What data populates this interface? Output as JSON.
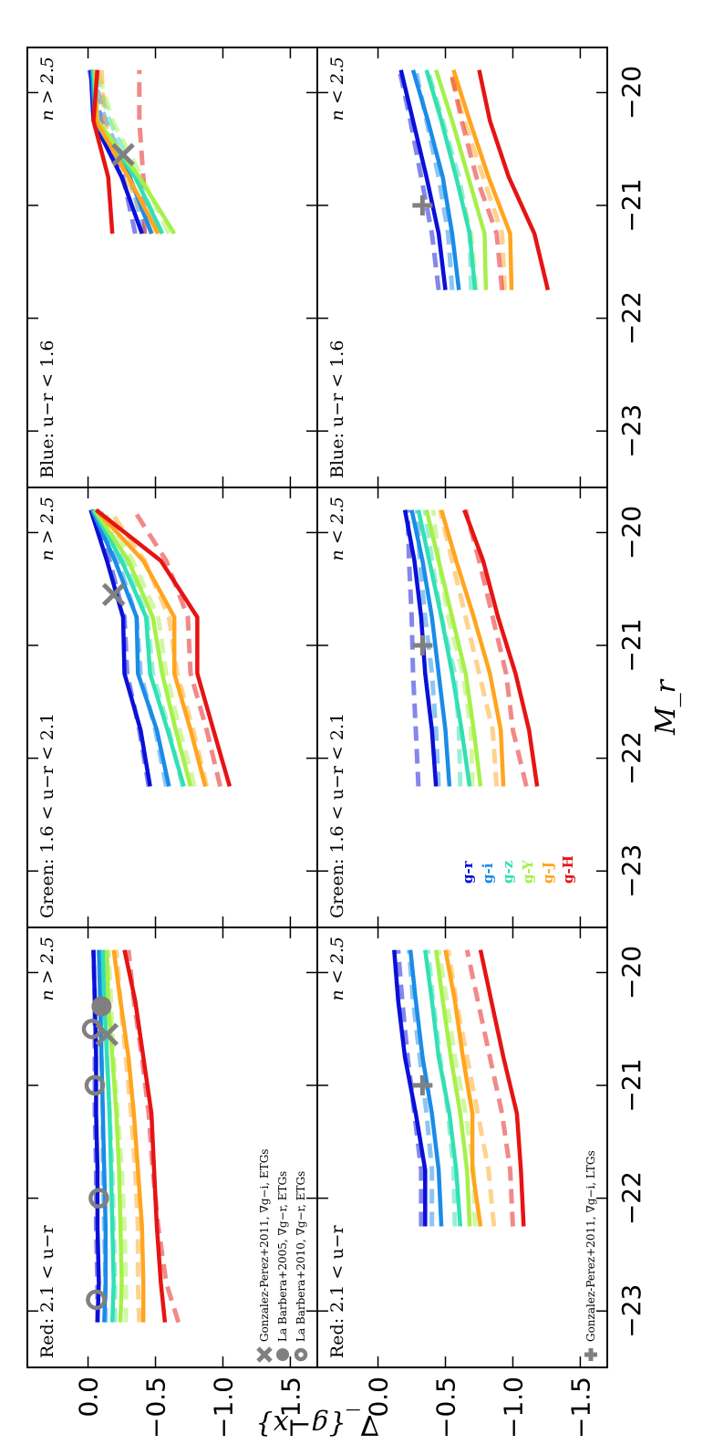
{
  "chart_data": {
    "type": "line",
    "xlabel": "M_r",
    "ylabel": "∇_{g−x}",
    "xlim": [
      -23.5,
      -19.6
    ],
    "ylim": [
      -1.7,
      0.45
    ],
    "xticks": [
      -23,
      -22,
      -21,
      -20
    ],
    "xtick_labels": [
      "−23",
      "−22",
      "−21",
      "−20"
    ],
    "yticks": [
      0.0,
      -0.5,
      -1.0,
      -1.5
    ],
    "ytick_labels": [
      "0.0",
      "−0.5",
      "−1.0",
      "−1.5"
    ],
    "color_names": [
      "g-r",
      "g-i",
      "g-z",
      "g-Y",
      "g-J",
      "g-H"
    ],
    "colors": [
      "#0a10d8",
      "#1a8ce8",
      "#32e0b4",
      "#a6f04a",
      "#ffa51e",
      "#e61414"
    ],
    "panels": [
      {
        "id": "red-high-n",
        "col": 0,
        "row": 0,
        "label_left": "Red: 2.1 < u−r",
        "label_right": "n > 2.5",
        "x": [
          -23.1,
          -22.75,
          -22.25,
          -21.75,
          -21.25,
          -20.75,
          -20.25,
          -19.8
        ],
        "series_solid": [
          [
            -0.07,
            -0.08,
            -0.07,
            -0.07,
            -0.06,
            -0.06,
            -0.05,
            -0.04
          ],
          [
            -0.12,
            -0.13,
            -0.13,
            -0.12,
            -0.11,
            -0.1,
            -0.09,
            -0.08
          ],
          [
            -0.18,
            -0.19,
            -0.18,
            -0.17,
            -0.16,
            -0.14,
            -0.12,
            -0.11
          ],
          [
            -0.24,
            -0.25,
            -0.24,
            -0.23,
            -0.21,
            -0.18,
            -0.15,
            -0.14
          ],
          [
            -0.41,
            -0.41,
            -0.4,
            -0.37,
            -0.34,
            -0.3,
            -0.24,
            -0.19
          ],
          [
            -0.57,
            -0.54,
            -0.51,
            -0.49,
            -0.47,
            -0.41,
            -0.35,
            -0.27
          ]
        ],
        "series_dashed": [
          [
            -0.07,
            -0.07,
            -0.06,
            -0.06,
            -0.05,
            -0.05,
            -0.05,
            -0.04
          ],
          [
            -0.13,
            -0.13,
            -0.12,
            -0.11,
            -0.11,
            -0.1,
            -0.09,
            -0.09
          ],
          [
            -0.2,
            -0.2,
            -0.19,
            -0.18,
            -0.16,
            -0.14,
            -0.13,
            -0.12
          ],
          [
            -0.28,
            -0.28,
            -0.27,
            -0.25,
            -0.22,
            -0.19,
            -0.17,
            -0.15
          ],
          [
            -0.38,
            -0.37,
            -0.37,
            -0.35,
            -0.32,
            -0.28,
            -0.24,
            -0.21
          ],
          [
            -0.67,
            -0.58,
            -0.52,
            -0.48,
            -0.45,
            -0.4,
            -0.34,
            -0.3
          ]
        ],
        "markers": [
          {
            "kind": "cross",
            "x": -20.55,
            "y": -0.14
          },
          {
            "kind": "disk",
            "x": -20.3,
            "y": -0.1
          },
          {
            "kind": "ring",
            "x": -22.9,
            "y": -0.06
          },
          {
            "kind": "ring",
            "x": -22.0,
            "y": -0.08
          },
          {
            "kind": "ring",
            "x": -21.0,
            "y": -0.05
          },
          {
            "kind": "ring",
            "x": -20.5,
            "y": -0.03
          }
        ],
        "legend": [
          {
            "kind": "cross",
            "text": "Gonzalez-Perez+2011, ∇g−i, ETGs"
          },
          {
            "kind": "disk",
            "text": "La Barbera+2005, ∇g−r, ETGs"
          },
          {
            "kind": "ring",
            "text": "La Barbera+2010, ∇g−r, ETGs"
          }
        ]
      },
      {
        "id": "green-high-n",
        "col": 1,
        "row": 0,
        "label_left": "Green: 1.6 < u−r < 2.1",
        "label_right": "n > 2.5",
        "x": [
          -22.25,
          -21.75,
          -21.25,
          -20.75,
          -20.25,
          -19.8
        ],
        "series_solid": [
          [
            -0.46,
            -0.39,
            -0.27,
            -0.26,
            -0.14,
            -0.02
          ],
          [
            -0.6,
            -0.51,
            -0.37,
            -0.36,
            -0.2,
            -0.03
          ],
          [
            -0.71,
            -0.59,
            -0.46,
            -0.43,
            -0.25,
            -0.04
          ],
          [
            -0.76,
            -0.65,
            -0.55,
            -0.48,
            -0.3,
            -0.05
          ],
          [
            -0.87,
            -0.76,
            -0.64,
            -0.64,
            -0.41,
            -0.06
          ],
          [
            -1.05,
            -0.93,
            -0.81,
            -0.81,
            -0.54,
            -0.06
          ]
        ],
        "series_dashed": [
          [
            -0.45,
            -0.38,
            -0.29,
            -0.27,
            -0.16,
            -0.05
          ],
          [
            -0.58,
            -0.5,
            -0.39,
            -0.36,
            -0.22,
            -0.07
          ],
          [
            -0.7,
            -0.6,
            -0.48,
            -0.44,
            -0.27,
            -0.09
          ],
          [
            -0.79,
            -0.68,
            -0.58,
            -0.52,
            -0.33,
            -0.11
          ],
          [
            -0.88,
            -0.78,
            -0.66,
            -0.6,
            -0.42,
            -0.16
          ],
          [
            -0.98,
            -0.88,
            -0.76,
            -0.74,
            -0.58,
            -0.34
          ]
        ],
        "markers": [
          {
            "kind": "cross",
            "x": -20.55,
            "y": -0.19
          }
        ]
      },
      {
        "id": "blue-high-n",
        "col": 2,
        "row": 0,
        "label_left": "Blue: u−r < 1.6",
        "label_right": "n > 2.5",
        "x": [
          -21.25,
          -20.75,
          -20.25,
          -19.8
        ],
        "series_solid": [
          [
            -0.4,
            -0.25,
            -0.04,
            -0.02
          ],
          [
            -0.47,
            -0.31,
            -0.05,
            -0.03
          ],
          [
            -0.55,
            -0.35,
            -0.06,
            -0.04
          ],
          [
            -0.64,
            -0.38,
            -0.07,
            -0.05
          ],
          [
            -0.52,
            -0.3,
            -0.06,
            -0.06
          ],
          [
            -0.18,
            -0.15,
            -0.04,
            -0.07
          ]
        ],
        "series_dashed": [
          [
            -0.35,
            -0.26,
            -0.1,
            -0.01
          ],
          [
            -0.42,
            -0.31,
            -0.13,
            -0.03
          ],
          [
            -0.55,
            -0.36,
            -0.16,
            -0.05
          ],
          [
            -0.6,
            -0.4,
            -0.18,
            -0.07
          ],
          [
            -0.48,
            -0.28,
            -0.12,
            -0.1
          ],
          [
            -0.42,
            -0.41,
            -0.38,
            -0.38
          ]
        ],
        "markers": [
          {
            "kind": "cross",
            "x": -20.55,
            "y": -0.26
          }
        ]
      },
      {
        "id": "red-low-n",
        "col": 0,
        "row": 1,
        "label_left": "Red: 2.1 < u−r",
        "label_right": "n < 2.5",
        "x": [
          -22.25,
          -21.75,
          -21.25,
          -20.75,
          -20.25,
          -19.8
        ],
        "series_solid": [
          [
            -0.35,
            -0.35,
            -0.28,
            -0.2,
            -0.15,
            -0.12
          ],
          [
            -0.47,
            -0.45,
            -0.4,
            -0.33,
            -0.28,
            -0.24
          ],
          [
            -0.61,
            -0.58,
            -0.53,
            -0.45,
            -0.4,
            -0.35
          ],
          [
            -0.68,
            -0.66,
            -0.61,
            -0.54,
            -0.48,
            -0.43
          ],
          [
            -0.76,
            -0.7,
            -0.7,
            -0.63,
            -0.57,
            -0.5
          ],
          [
            -1.08,
            -1.06,
            -1.03,
            -0.93,
            -0.84,
            -0.76
          ]
        ],
        "series_dashed": [
          [
            -0.32,
            -0.32,
            -0.27,
            -0.22,
            -0.18,
            -0.15
          ],
          [
            -0.4,
            -0.4,
            -0.36,
            -0.31,
            -0.26,
            -0.23
          ],
          [
            -0.57,
            -0.56,
            -0.52,
            -0.46,
            -0.41,
            -0.37
          ],
          [
            -0.72,
            -0.71,
            -0.65,
            -0.57,
            -0.51,
            -0.45
          ],
          [
            -0.86,
            -0.82,
            -0.74,
            -0.66,
            -0.58,
            -0.52
          ],
          [
            -1.0,
            -0.98,
            -0.92,
            -0.83,
            -0.74,
            -0.66
          ]
        ],
        "markers": [
          {
            "kind": "plus",
            "x": -21.0,
            "y": -0.33
          }
        ],
        "legend": [
          {
            "kind": "plus",
            "text": "Gonzalez-Perez+2011, ∇g−i, LTGs"
          }
        ]
      },
      {
        "id": "green-low-n",
        "col": 1,
        "row": 1,
        "label_left": "Green: 1.6 < u−r < 2.1",
        "label_right": "n < 2.5",
        "x": [
          -22.25,
          -21.75,
          -21.25,
          -20.75,
          -20.25,
          -19.8
        ],
        "series_solid": [
          [
            -0.43,
            -0.4,
            -0.35,
            -0.32,
            -0.27,
            -0.2
          ],
          [
            -0.53,
            -0.5,
            -0.45,
            -0.4,
            -0.33,
            -0.25
          ],
          [
            -0.68,
            -0.62,
            -0.55,
            -0.47,
            -0.38,
            -0.3
          ],
          [
            -0.76,
            -0.71,
            -0.65,
            -0.55,
            -0.45,
            -0.36
          ],
          [
            -0.93,
            -0.91,
            -0.83,
            -0.71,
            -0.58,
            -0.47
          ],
          [
            -1.18,
            -1.12,
            -1.02,
            -0.89,
            -0.78,
            -0.64
          ]
        ],
        "series_dashed": [
          [
            -0.3,
            -0.28,
            -0.26,
            -0.25,
            -0.23,
            -0.22
          ],
          [
            -0.45,
            -0.43,
            -0.4,
            -0.35,
            -0.31,
            -0.29
          ],
          [
            -0.61,
            -0.6,
            -0.57,
            -0.47,
            -0.4,
            -0.35
          ],
          [
            -0.7,
            -0.69,
            -0.63,
            -0.52,
            -0.45,
            -0.41
          ],
          [
            -0.88,
            -0.85,
            -0.75,
            -0.65,
            -0.55,
            -0.46
          ],
          [
            -1.1,
            -1.0,
            -0.95,
            -0.85,
            -0.75,
            -0.65
          ]
        ],
        "markers": [
          {
            "kind": "plus",
            "x": -21.0,
            "y": -0.33
          }
        ],
        "color_labels": true
      },
      {
        "id": "blue-low-n",
        "col": 2,
        "row": 1,
        "label_left": "Blue: u−r < 1.6",
        "label_right": "n < 2.5",
        "x": [
          -21.75,
          -21.25,
          -20.75,
          -20.25,
          -19.8
        ],
        "series_solid": [
          [
            -0.5,
            -0.45,
            -0.36,
            -0.26,
            -0.17
          ],
          [
            -0.6,
            -0.55,
            -0.48,
            -0.37,
            -0.26
          ],
          [
            -0.72,
            -0.68,
            -0.58,
            -0.47,
            -0.36
          ],
          [
            -0.8,
            -0.79,
            -0.67,
            -0.55,
            -0.43
          ],
          [
            -0.99,
            -0.98,
            -0.82,
            -0.68,
            -0.56
          ],
          [
            -1.26,
            -1.16,
            -0.97,
            -0.83,
            -0.75
          ]
        ],
        "series_dashed": [
          [
            -0.45,
            -0.4,
            -0.32,
            -0.24,
            -0.16
          ],
          [
            -0.55,
            -0.52,
            -0.45,
            -0.36,
            -0.28
          ],
          [
            -0.69,
            -0.68,
            -0.6,
            -0.48,
            -0.37
          ],
          [
            -0.73,
            -0.69,
            -0.58,
            -0.47,
            -0.36
          ],
          [
            -0.94,
            -0.92,
            -0.78,
            -0.64,
            -0.53
          ],
          [
            -0.92,
            -0.88,
            -0.73,
            -0.62,
            -0.54
          ]
        ],
        "markers": [
          {
            "kind": "plus",
            "x": -21.0,
            "y": -0.33
          }
        ]
      }
    ]
  }
}
